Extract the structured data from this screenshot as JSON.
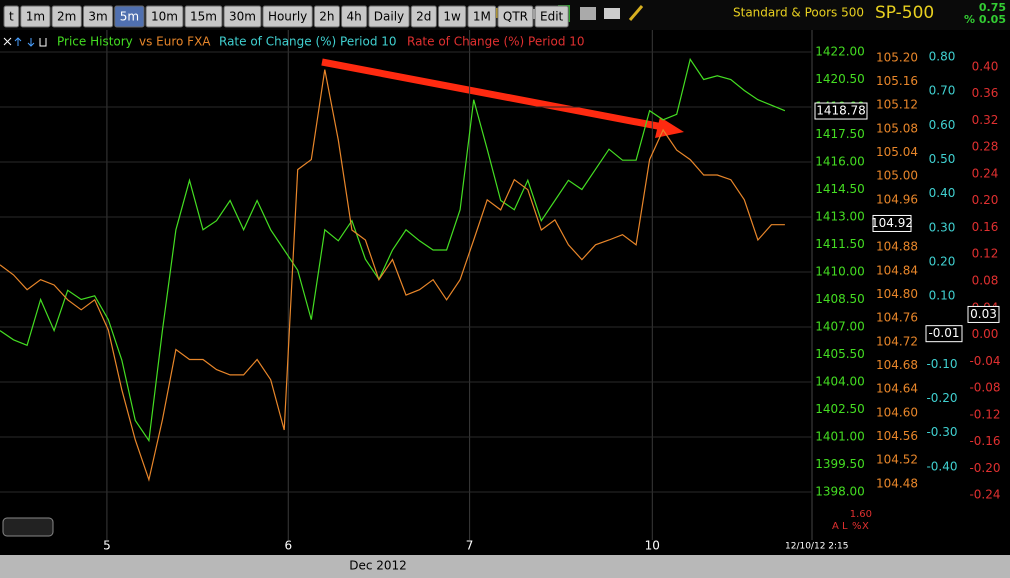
{
  "toolbar": {
    "buttons": [
      "t",
      "1m",
      "2m",
      "3m",
      "5m",
      "10m",
      "15m",
      "30m",
      "Hourly",
      "2h",
      "4h",
      "Daily",
      "2d",
      "1w",
      "1M",
      "QTR",
      "Edit"
    ],
    "selected": 4
  },
  "header": {
    "name": "Standard & Poors 500",
    "symbol": "SP-500",
    "change": "0.75",
    "change_pct": "% 0.05"
  },
  "chart_data": {
    "type": "line",
    "grid": true,
    "x": [
      0,
      1,
      2,
      3,
      4,
      5,
      6,
      7,
      8,
      9,
      10,
      11,
      12,
      13,
      14,
      15,
      16,
      17,
      18,
      19,
      20,
      21,
      22,
      23,
      24,
      25,
      26,
      27,
      28,
      29,
      30,
      31,
      32,
      33,
      34,
      35,
      36,
      37,
      38,
      39,
      40,
      41,
      42,
      43,
      44,
      45,
      46,
      47,
      48,
      49,
      50,
      51,
      52,
      53,
      54,
      55,
      56,
      57,
      58
    ],
    "xlim": [
      0,
      60
    ],
    "xticks": [
      {
        "value": 7.9,
        "label": "5"
      },
      {
        "value": 21.3,
        "label": "6"
      },
      {
        "value": 34.7,
        "label": "7"
      },
      {
        "value": 48.2,
        "label": "10"
      }
    ],
    "xlabel": "Dec 2012",
    "series": [
      {
        "name": "Price History",
        "color": "#44dd22",
        "values": [
          1406.8,
          1406.3,
          1406.0,
          1408.5,
          1406.8,
          1409.0,
          1408.5,
          1408.7,
          1407.4,
          1405.2,
          1401.9,
          1400.8,
          1406.8,
          1412.3,
          1415.0,
          1412.3,
          1412.8,
          1413.9,
          1412.3,
          1413.9,
          1412.3,
          1411.2,
          1410.1,
          1407.4,
          1412.3,
          1411.7,
          1412.8,
          1410.7,
          1409.6,
          1411.2,
          1412.3,
          1411.7,
          1411.2,
          1411.2,
          1413.4,
          1419.4,
          1416.7,
          1413.9,
          1413.4,
          1415.0,
          1412.8,
          1413.9,
          1415.0,
          1414.5,
          1415.6,
          1416.7,
          1416.1,
          1416.1,
          1418.8,
          1418.3,
          1418.6,
          1421.6,
          1420.5,
          1420.7,
          1420.5,
          1419.9,
          1419.4,
          1419.1,
          1418.8
        ]
      },
      {
        "name": "vs Euro FXA",
        "color": "#e8862a",
        "axis": "y2",
        "values": [
          104.85,
          104.833,
          104.808,
          104.825,
          104.816,
          104.791,
          104.774,
          104.791,
          104.74,
          104.639,
          104.554,
          104.487,
          104.588,
          104.707,
          104.69,
          104.69,
          104.673,
          104.664,
          104.664,
          104.69,
          104.656,
          104.571,
          105.011,
          105.028,
          105.18,
          105.061,
          104.909,
          104.892,
          104.825,
          104.859,
          104.799,
          104.808,
          104.825,
          104.791,
          104.825,
          104.892,
          104.96,
          104.943,
          104.994,
          104.977,
          104.909,
          104.926,
          104.884,
          104.859,
          104.884,
          104.892,
          104.901,
          104.884,
          105.028,
          105.078,
          105.044,
          105.028,
          105.002,
          105.002,
          104.994,
          104.96,
          104.892,
          104.918,
          104.918
        ]
      }
    ],
    "indicators": [
      {
        "name": "Rate of Change (%) Period 10",
        "color": "#40d0d0",
        "axis": "y3"
      },
      {
        "name": "Rate of Change (%) Period 10",
        "color": "#e03030",
        "axis": "y4"
      }
    ],
    "ylim": [
      1395.38,
      1423.2
    ],
    "yticks": [
      {
        "value": 1422,
        "label": "1422.00"
      },
      {
        "value": 1420.5,
        "label": "1420.50"
      },
      {
        "value": 1419,
        "label": "1419.00"
      },
      {
        "value": 1417.5,
        "label": "1417.50"
      },
      {
        "value": 1416,
        "label": "1416.00"
      },
      {
        "value": 1414.5,
        "label": "1414.50"
      },
      {
        "value": 1413,
        "label": "1413.00"
      },
      {
        "value": 1411.5,
        "label": "1411.50"
      },
      {
        "value": 1410,
        "label": "1410.00"
      },
      {
        "value": 1408.5,
        "label": "1408.50"
      },
      {
        "value": 1407,
        "label": "1407.00"
      },
      {
        "value": 1405.5,
        "label": "1405.50"
      },
      {
        "value": 1404,
        "label": "1404.00"
      },
      {
        "value": 1402.5,
        "label": "1402.50"
      },
      {
        "value": 1401,
        "label": "1401.00"
      },
      {
        "value": 1399.5,
        "label": "1399.50"
      },
      {
        "value": 1398,
        "label": "1398.00"
      }
    ],
    "y2lim": [
      104.385,
      105.247
    ],
    "y2ticks": [
      {
        "value": 105.2,
        "label": "105.20"
      },
      105.16,
      105.12,
      105.08,
      105.04,
      {
        "value": 105,
        "label": "105.00"
      },
      104.96,
      104.88,
      104.84,
      {
        "value": 104.8,
        "label": "104.80"
      },
      104.76,
      104.72,
      104.68,
      104.64,
      {
        "value": 104.6,
        "label": "104.60"
      },
      104.56,
      104.52,
      104.48
    ],
    "y3lim": [
      -0.614,
      0.879
    ],
    "y3ticks": [
      {
        "value": 0.8,
        "label": "0.80"
      },
      {
        "value": 0.7,
        "label": "0.70"
      },
      {
        "value": 0.6,
        "label": "0.60"
      },
      {
        "value": 0.5,
        "label": "0.50"
      },
      {
        "value": 0.4,
        "label": "0.40"
      },
      {
        "value": 0.3,
        "label": "0.30"
      },
      {
        "value": 0.2,
        "label": "0.20"
      },
      {
        "value": 0.1,
        "label": "0.10"
      },
      {
        "value": -0.1,
        "label": "-0.10"
      },
      {
        "value": -0.2,
        "label": "-0.20"
      },
      {
        "value": -0.3,
        "label": "-0.30"
      },
      {
        "value": -0.4,
        "label": "-0.40"
      }
    ],
    "y4lim": [
      -0.307,
      0.455
    ],
    "y4ticks": [
      {
        "value": 0.4,
        "label": "0.40"
      },
      0.36,
      0.32,
      0.28,
      0.24,
      {
        "value": 0.2,
        "label": "0.20"
      },
      0.16,
      0.12,
      0.08,
      0.04,
      {
        "value": 0,
        "label": "0.00"
      },
      -0.04,
      -0.08,
      -0.12,
      -0.16,
      {
        "value": -0.2,
        "label": "-0.20"
      },
      -0.24
    ],
    "current": {
      "y": 1418.78,
      "y2": 104.92,
      "y3": -0.01,
      "y4": 0.03
    }
  },
  "footer": {
    "scale": "1.60",
    "buttons": [
      "A",
      "L",
      "%",
      "X"
    ],
    "timestamp": "12/10/12 2:15"
  }
}
